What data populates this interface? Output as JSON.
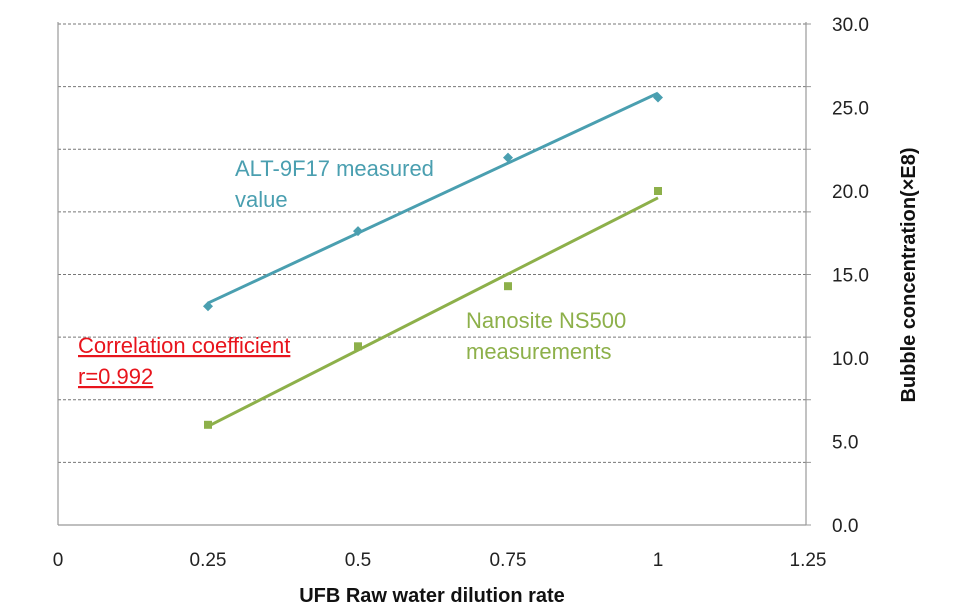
{
  "chart_data": {
    "type": "scatter",
    "xlabel": "UFB Raw water dilution rate",
    "ylabel": "Bubble concentration(×E8)",
    "xlim": [
      0,
      1.25
    ],
    "ylim": [
      0,
      30
    ],
    "xticks": [
      "0",
      "0.25",
      "0.5",
      "0.75",
      "1",
      "1.25"
    ],
    "yticks": [
      "0.0",
      "5.0",
      "10.0",
      "15.0",
      "20.0",
      "25.0",
      "30.0"
    ],
    "y_axis_side": "right",
    "grid": "horizontal dashed",
    "series": [
      {
        "name": "ALT-9F17 measured value",
        "label_lines": [
          "ALT-9F17 measured",
          "value"
        ],
        "marker": "diamond",
        "color": "#4a9fb0",
        "trendline": "linear",
        "x": [
          0.25,
          0.5,
          0.75,
          1
        ],
        "y": [
          13.1,
          17.6,
          22.0,
          25.6
        ]
      },
      {
        "name": "Nanosite NS500 measurements",
        "label_lines": [
          "Nanosite NS500",
          "measurements"
        ],
        "marker": "square",
        "color": "#8db04a",
        "trendline": "linear",
        "x": [
          0.25,
          0.5,
          0.75,
          1
        ],
        "y": [
          6.0,
          10.7,
          14.3,
          20.0
        ]
      }
    ],
    "annotations": {
      "correlation_lines": [
        "Correlation coefficient",
        "r=0.992"
      ],
      "correlation_color": "#e8141c"
    }
  }
}
